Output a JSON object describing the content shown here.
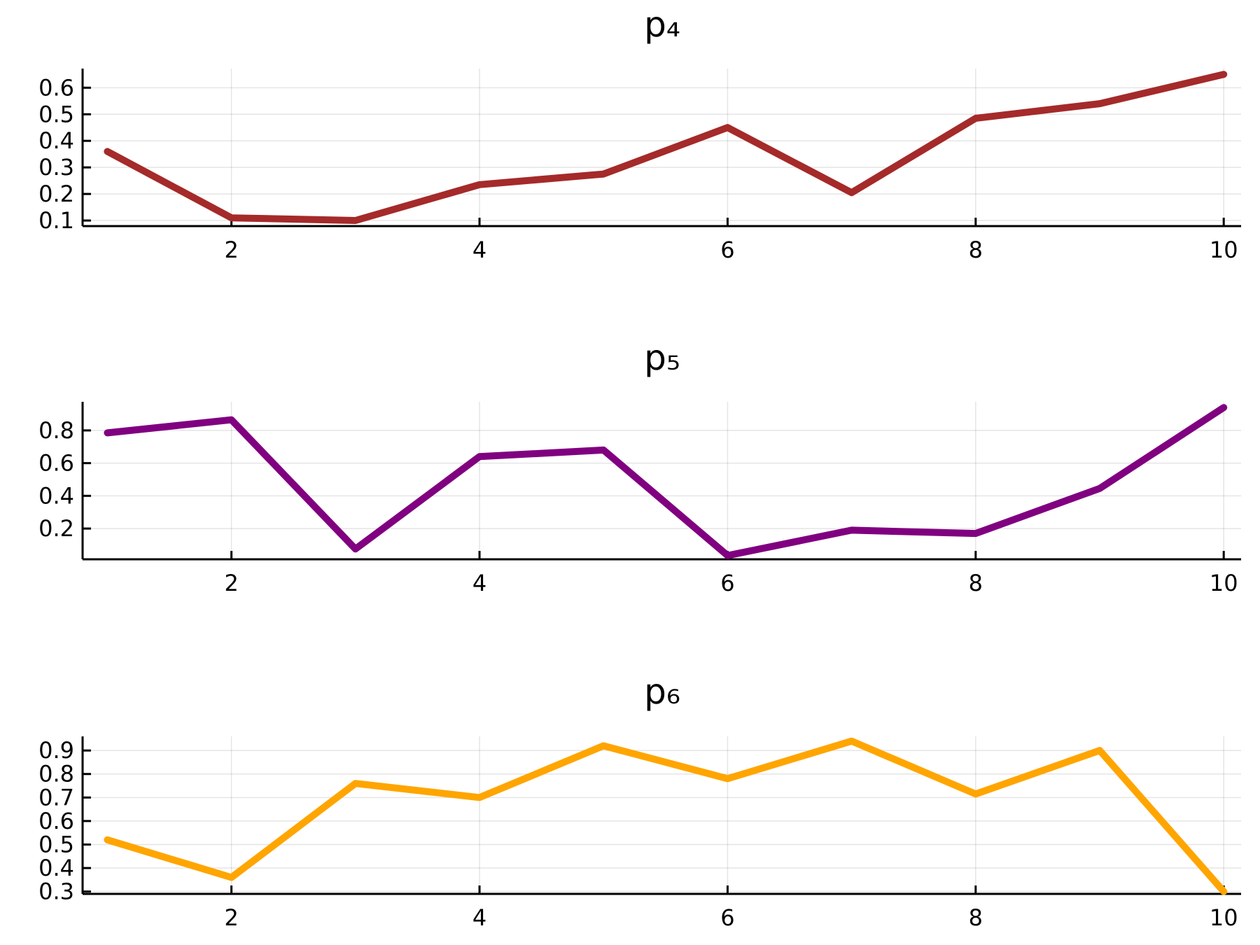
{
  "chart_data": [
    {
      "type": "line",
      "title": "p₄",
      "x": [
        1,
        2,
        3,
        4,
        5,
        6,
        7,
        8,
        9,
        10
      ],
      "series": [
        {
          "values": [
            0.36,
            0.11,
            0.1,
            0.235,
            0.275,
            0.45,
            0.205,
            0.485,
            0.54,
            0.65
          ]
        }
      ],
      "color": "#A52A2A",
      "xticks": [
        2,
        4,
        6,
        8,
        10
      ],
      "xtick_labels": [
        "2",
        "4",
        "6",
        "8",
        "10"
      ],
      "yticks": [
        0.1,
        0.2,
        0.3,
        0.4,
        0.5,
        0.6
      ],
      "ytick_labels": [
        "0.1",
        "0.2",
        "0.3",
        "0.4",
        "0.5",
        "0.6"
      ],
      "xlim": [
        0.8,
        10.14
      ],
      "ylim": [
        0.079,
        0.672
      ],
      "grid": true,
      "legend": false
    },
    {
      "type": "line",
      "title": "p₅",
      "x": [
        1,
        2,
        3,
        4,
        5,
        6,
        7,
        8,
        9,
        10
      ],
      "series": [
        {
          "values": [
            0.785,
            0.865,
            0.075,
            0.64,
            0.68,
            0.035,
            0.19,
            0.17,
            0.445,
            0.94
          ]
        }
      ],
      "color": "#800080",
      "xticks": [
        2,
        4,
        6,
        8,
        10
      ],
      "xtick_labels": [
        "2",
        "4",
        "6",
        "8",
        "10"
      ],
      "yticks": [
        0.2,
        0.4,
        0.6,
        0.8
      ],
      "ytick_labels": [
        "0.2",
        "0.4",
        "0.6",
        "0.8"
      ],
      "xlim": [
        0.8,
        10.14
      ],
      "ylim": [
        0.012,
        0.975
      ],
      "grid": true,
      "legend": false
    },
    {
      "type": "line",
      "title": "p₆",
      "x": [
        1,
        2,
        3,
        4,
        5,
        6,
        7,
        8,
        9,
        10
      ],
      "series": [
        {
          "values": [
            0.52,
            0.36,
            0.76,
            0.7,
            0.92,
            0.78,
            0.94,
            0.715,
            0.9,
            0.3
          ]
        }
      ],
      "color": "#FFA500",
      "xticks": [
        2,
        4,
        6,
        8,
        10
      ],
      "xtick_labels": [
        "2",
        "4",
        "6",
        "8",
        "10"
      ],
      "yticks": [
        0.3,
        0.4,
        0.5,
        0.6,
        0.7,
        0.8,
        0.9
      ],
      "ytick_labels": [
        "0.3",
        "0.4",
        "0.5",
        "0.6",
        "0.7",
        "0.8",
        "0.9"
      ],
      "xlim": [
        0.8,
        10.14
      ],
      "ylim": [
        0.29,
        0.96
      ],
      "grid": true,
      "legend": false
    }
  ]
}
